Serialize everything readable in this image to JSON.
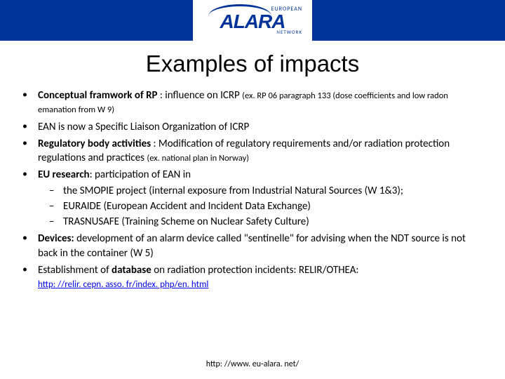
{
  "logo": {
    "top": "EUROPEAN",
    "main": "ALARA",
    "bottom": "NETWORK"
  },
  "title": "Examples of impacts",
  "bullets": [
    {
      "prefix_bold": "Conceptual framwork of RP",
      "rest": " : influence on ICRP ",
      "small": "(ex. RP 06 paragraph 133 (dose coefficients and low radon emanation from W 9)"
    },
    {
      "plain": "EAN is now a Specific Liaison Organization of ICRP"
    },
    {
      "prefix_bold": "Regulatory body activities",
      "rest": " : Modification of regulatory requirements and/or radiation protection regulations and practices ",
      "small": "(ex. national plan in Norway)"
    },
    {
      "prefix_bold": "EU research",
      "rest": ": participation of EAN in",
      "sub": [
        "the SMOPIE project (internal exposure from Industrial Natural Sources (W 1&3);",
        "EURAIDE (European Accident and Incident Data Exchange)",
        "TRASNUSAFE (Training Scheme on Nuclear Safety Culture)"
      ]
    },
    {
      "prefix_bold": "Devices:",
      "rest": " development of an alarm device called \"sentinelle\" for advising when the NDT source is not back in the container (W 5)"
    },
    {
      "pre": "Establishment of ",
      "mid_bold": "database",
      "post": " on radiation protection incidents: RELIR/OTHEA:",
      "link": "http: //relir. cepn. asso. fr/index. php/en. html"
    }
  ],
  "footer": "http: //www. eu-alara. net/"
}
